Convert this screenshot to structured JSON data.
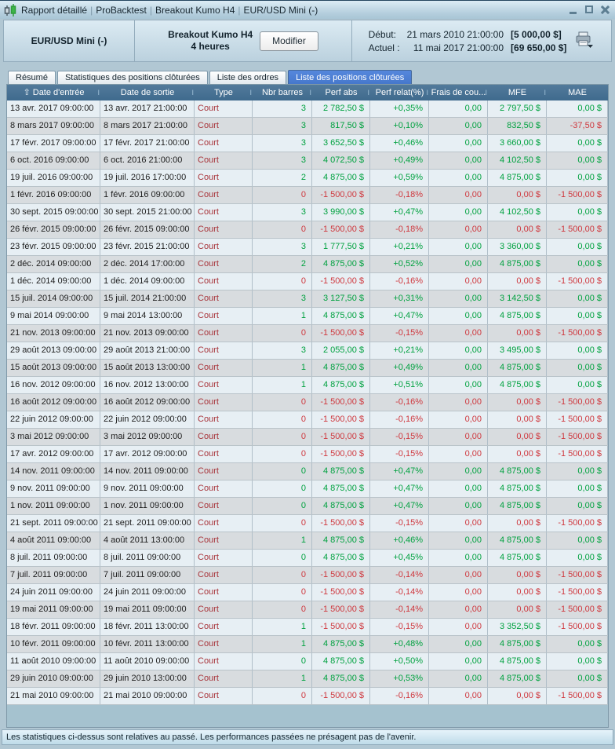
{
  "titlebar": {
    "segments": [
      "Rapport détaillé",
      "ProBacktest",
      "Breakout Kumo H4",
      "EUR/USD Mini (-)"
    ],
    "separator": "|",
    "controls": [
      "minimize",
      "maximize",
      "close"
    ]
  },
  "header": {
    "instrument": "EUR/USD Mini (-)",
    "system_name": "Breakout Kumo H4",
    "timeframe": "4 heures",
    "modify_label": "Modifier",
    "start_label": "Début:",
    "start_datetime": "21 mars 2010 21:00:00",
    "start_capital": "[5 000,00 $]",
    "current_label": "Actuel :",
    "current_datetime": "11 mai 2017 21:00:00",
    "current_capital": "[69 650,00 $]"
  },
  "tabs": [
    {
      "id": "resume",
      "label": "Résumé",
      "active": false
    },
    {
      "id": "statistiques-positions-cloturees",
      "label": "Statistiques des positions clôturées",
      "active": false
    },
    {
      "id": "liste-des-ordres",
      "label": "Liste des ordres",
      "active": false
    },
    {
      "id": "liste-des-positions-cloturees",
      "label": "Liste des positions clôturées",
      "active": true
    }
  ],
  "table": {
    "sort_icon": "⇧",
    "separator": "I",
    "columns": [
      "Date d'entrée",
      "Date de sortie",
      "Type",
      "Nbr barres",
      "Perf abs",
      "Perf relat(%)",
      "Frais de cou...",
      "MFE",
      "MAE"
    ],
    "rows": [
      {
        "cells": [
          "13 avr. 2017 09:00:00",
          "13 avr. 2017 21:00:00",
          "Court",
          "3",
          "2 782,50 $",
          "+0,35%",
          "0,00",
          "2 797,50 $",
          "0,00 $"
        ],
        "colors": "gggggg"
      },
      {
        "cells": [
          "8 mars 2017 09:00:00",
          "8 mars 2017 21:00:00",
          "Court",
          "3",
          "817,50 $",
          "+0,10%",
          "0,00",
          "832,50 $",
          "-37,50 $"
        ],
        "colors": "gggggr"
      },
      {
        "cells": [
          "17 févr. 2017 09:00:00",
          "17 févr. 2017 21:00:00",
          "Court",
          "3",
          "3 652,50 $",
          "+0,46%",
          "0,00",
          "3 660,00 $",
          "0,00 $"
        ],
        "colors": "gggggg"
      },
      {
        "cells": [
          "6 oct. 2016 09:00:00",
          "6 oct. 2016 21:00:00",
          "Court",
          "3",
          "4 072,50 $",
          "+0,49%",
          "0,00",
          "4 102,50 $",
          "0,00 $"
        ],
        "colors": "gggggg"
      },
      {
        "cells": [
          "19 juil. 2016 09:00:00",
          "19 juil. 2016 17:00:00",
          "Court",
          "2",
          "4 875,00 $",
          "+0,59%",
          "0,00",
          "4 875,00 $",
          "0,00 $"
        ],
        "colors": "gggggg"
      },
      {
        "cells": [
          "1 févr. 2016 09:00:00",
          "1 févr. 2016 09:00:00",
          "Court",
          "0",
          "-1 500,00 $",
          "-0,18%",
          "0,00",
          "0,00 $",
          "-1 500,00 $"
        ],
        "colors": "rrrrrr"
      },
      {
        "cells": [
          "30 sept. 2015 09:00:00",
          "30 sept. 2015 21:00:00",
          "Court",
          "3",
          "3 990,00 $",
          "+0,47%",
          "0,00",
          "4 102,50 $",
          "0,00 $"
        ],
        "colors": "gggggg"
      },
      {
        "cells": [
          "26 févr. 2015 09:00:00",
          "26 févr. 2015 09:00:00",
          "Court",
          "0",
          "-1 500,00 $",
          "-0,18%",
          "0,00",
          "0,00 $",
          "-1 500,00 $"
        ],
        "colors": "rrrrrr"
      },
      {
        "cells": [
          "23 févr. 2015 09:00:00",
          "23 févr. 2015 21:00:00",
          "Court",
          "3",
          "1 777,50 $",
          "+0,21%",
          "0,00",
          "3 360,00 $",
          "0,00 $"
        ],
        "colors": "gggggg"
      },
      {
        "cells": [
          "2 déc. 2014 09:00:00",
          "2 déc. 2014 17:00:00",
          "Court",
          "2",
          "4 875,00 $",
          "+0,52%",
          "0,00",
          "4 875,00 $",
          "0,00 $"
        ],
        "colors": "gggggg"
      },
      {
        "cells": [
          "1 déc. 2014 09:00:00",
          "1 déc. 2014 09:00:00",
          "Court",
          "0",
          "-1 500,00 $",
          "-0,16%",
          "0,00",
          "0,00 $",
          "-1 500,00 $"
        ],
        "colors": "rrrrrr"
      },
      {
        "cells": [
          "15 juil. 2014 09:00:00",
          "15 juil. 2014 21:00:00",
          "Court",
          "3",
          "3 127,50 $",
          "+0,31%",
          "0,00",
          "3 142,50 $",
          "0,00 $"
        ],
        "colors": "gggggg"
      },
      {
        "cells": [
          "9 mai 2014 09:00:00",
          "9 mai 2014 13:00:00",
          "Court",
          "1",
          "4 875,00 $",
          "+0,47%",
          "0,00",
          "4 875,00 $",
          "0,00 $"
        ],
        "colors": "gggggg"
      },
      {
        "cells": [
          "21 nov. 2013 09:00:00",
          "21 nov. 2013 09:00:00",
          "Court",
          "0",
          "-1 500,00 $",
          "-0,15%",
          "0,00",
          "0,00 $",
          "-1 500,00 $"
        ],
        "colors": "rrrrrr"
      },
      {
        "cells": [
          "29 août 2013 09:00:00",
          "29 août 2013 21:00:00",
          "Court",
          "3",
          "2 055,00 $",
          "+0,21%",
          "0,00",
          "3 495,00 $",
          "0,00 $"
        ],
        "colors": "gggggg"
      },
      {
        "cells": [
          "15 août 2013 09:00:00",
          "15 août 2013 13:00:00",
          "Court",
          "1",
          "4 875,00 $",
          "+0,49%",
          "0,00",
          "4 875,00 $",
          "0,00 $"
        ],
        "colors": "gggggg"
      },
      {
        "cells": [
          "16 nov. 2012 09:00:00",
          "16 nov. 2012 13:00:00",
          "Court",
          "1",
          "4 875,00 $",
          "+0,51%",
          "0,00",
          "4 875,00 $",
          "0,00 $"
        ],
        "colors": "gggggg"
      },
      {
        "cells": [
          "16 août 2012 09:00:00",
          "16 août 2012 09:00:00",
          "Court",
          "0",
          "-1 500,00 $",
          "-0,16%",
          "0,00",
          "0,00 $",
          "-1 500,00 $"
        ],
        "colors": "rrrrrr"
      },
      {
        "cells": [
          "22 juin 2012 09:00:00",
          "22 juin 2012 09:00:00",
          "Court",
          "0",
          "-1 500,00 $",
          "-0,16%",
          "0,00",
          "0,00 $",
          "-1 500,00 $"
        ],
        "colors": "rrrrrr"
      },
      {
        "cells": [
          "3 mai 2012 09:00:00",
          "3 mai 2012 09:00:00",
          "Court",
          "0",
          "-1 500,00 $",
          "-0,15%",
          "0,00",
          "0,00 $",
          "-1 500,00 $"
        ],
        "colors": "rrrrrr"
      },
      {
        "cells": [
          "17 avr. 2012 09:00:00",
          "17 avr. 2012 09:00:00",
          "Court",
          "0",
          "-1 500,00 $",
          "-0,15%",
          "0,00",
          "0,00 $",
          "-1 500,00 $"
        ],
        "colors": "rrrrrr"
      },
      {
        "cells": [
          "14 nov. 2011 09:00:00",
          "14 nov. 2011 09:00:00",
          "Court",
          "0",
          "4 875,00 $",
          "+0,47%",
          "0,00",
          "4 875,00 $",
          "0,00 $"
        ],
        "colors": "gggggg"
      },
      {
        "cells": [
          "9 nov. 2011 09:00:00",
          "9 nov. 2011 09:00:00",
          "Court",
          "0",
          "4 875,00 $",
          "+0,47%",
          "0,00",
          "4 875,00 $",
          "0,00 $"
        ],
        "colors": "gggggg"
      },
      {
        "cells": [
          "1 nov. 2011 09:00:00",
          "1 nov. 2011 09:00:00",
          "Court",
          "0",
          "4 875,00 $",
          "+0,47%",
          "0,00",
          "4 875,00 $",
          "0,00 $"
        ],
        "colors": "gggggg"
      },
      {
        "cells": [
          "21 sept. 2011 09:00:00",
          "21 sept. 2011 09:00:00",
          "Court",
          "0",
          "-1 500,00 $",
          "-0,15%",
          "0,00",
          "0,00 $",
          "-1 500,00 $"
        ],
        "colors": "rrrrrr"
      },
      {
        "cells": [
          "4 août 2011 09:00:00",
          "4 août 2011 13:00:00",
          "Court",
          "1",
          "4 875,00 $",
          "+0,46%",
          "0,00",
          "4 875,00 $",
          "0,00 $"
        ],
        "colors": "gggggg"
      },
      {
        "cells": [
          "8 juil. 2011 09:00:00",
          "8 juil. 2011 09:00:00",
          "Court",
          "0",
          "4 875,00 $",
          "+0,45%",
          "0,00",
          "4 875,00 $",
          "0,00 $"
        ],
        "colors": "gggggg"
      },
      {
        "cells": [
          "7 juil. 2011 09:00:00",
          "7 juil. 2011 09:00:00",
          "Court",
          "0",
          "-1 500,00 $",
          "-0,14%",
          "0,00",
          "0,00 $",
          "-1 500,00 $"
        ],
        "colors": "rrrrrr"
      },
      {
        "cells": [
          "24 juin 2011 09:00:00",
          "24 juin 2011 09:00:00",
          "Court",
          "0",
          "-1 500,00 $",
          "-0,14%",
          "0,00",
          "0,00 $",
          "-1 500,00 $"
        ],
        "colors": "rrrrrr"
      },
      {
        "cells": [
          "19 mai 2011 09:00:00",
          "19 mai 2011 09:00:00",
          "Court",
          "0",
          "-1 500,00 $",
          "-0,14%",
          "0,00",
          "0,00 $",
          "-1 500,00 $"
        ],
        "colors": "rrrrrr"
      },
      {
        "cells": [
          "18 févr. 2011 09:00:00",
          "18 févr. 2011 13:00:00",
          "Court",
          "1",
          "-1 500,00 $",
          "-0,15%",
          "0,00",
          "3 352,50 $",
          "-1 500,00 $"
        ],
        "colors": "grrrgr"
      },
      {
        "cells": [
          "10 févr. 2011 09:00:00",
          "10 févr. 2011 13:00:00",
          "Court",
          "1",
          "4 875,00 $",
          "+0,48%",
          "0,00",
          "4 875,00 $",
          "0,00 $"
        ],
        "colors": "gggggg"
      },
      {
        "cells": [
          "11 août 2010 09:00:00",
          "11 août 2010 09:00:00",
          "Court",
          "0",
          "4 875,00 $",
          "+0,50%",
          "0,00",
          "4 875,00 $",
          "0,00 $"
        ],
        "colors": "gggggg"
      },
      {
        "cells": [
          "29 juin 2010 09:00:00",
          "29 juin 2010 13:00:00",
          "Court",
          "1",
          "4 875,00 $",
          "+0,53%",
          "0,00",
          "4 875,00 $",
          "0,00 $"
        ],
        "colors": "gggggg"
      },
      {
        "cells": [
          "21 mai 2010 09:00:00",
          "21 mai 2010 09:00:00",
          "Court",
          "0",
          "-1 500,00 $",
          "-0,16%",
          "0,00",
          "0,00 $",
          "-1 500,00 $"
        ],
        "colors": "rrrrrr"
      }
    ]
  },
  "footer": {
    "disclaimer": "Les statistiques ci-dessus sont relatives au passé. Les performances passées ne présagent pas de l'avenir."
  },
  "colors": {
    "positive_green": "#00a13f",
    "negative_red": "#cf383e",
    "type_dark_red": "#a8353b",
    "active_tab_blue_top": "#5587dd",
    "active_tab_blue_bottom": "#4678cc",
    "table_header_blue_top": "#527a9b",
    "table_header_blue_bottom": "#3f6a8d"
  }
}
